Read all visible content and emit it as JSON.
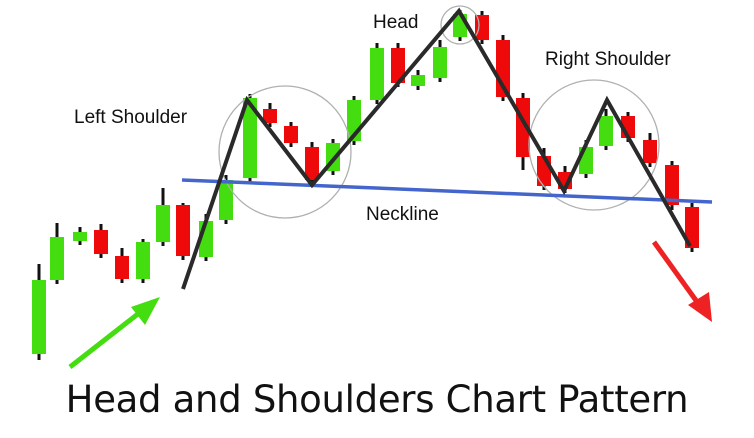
{
  "labels": {
    "head": "Head",
    "left_shoulder": "Left Shoulder",
    "right_shoulder": "Right Shoulder",
    "neckline": "Neckline"
  },
  "caption": "Head and Shoulders Chart Pattern",
  "colors": {
    "bullish": "#44dd0f",
    "bearish": "#ee0a0a",
    "wick": "#111111",
    "zigzag": "#2a2a2a",
    "neckline": "#4466cc",
    "circle": "#b0b0b0",
    "arrow_up": "#44dd0f",
    "arrow_down": "#ee2222"
  },
  "icons": [
    "trend-up-arrow-icon",
    "trend-down-arrow-icon"
  ]
}
